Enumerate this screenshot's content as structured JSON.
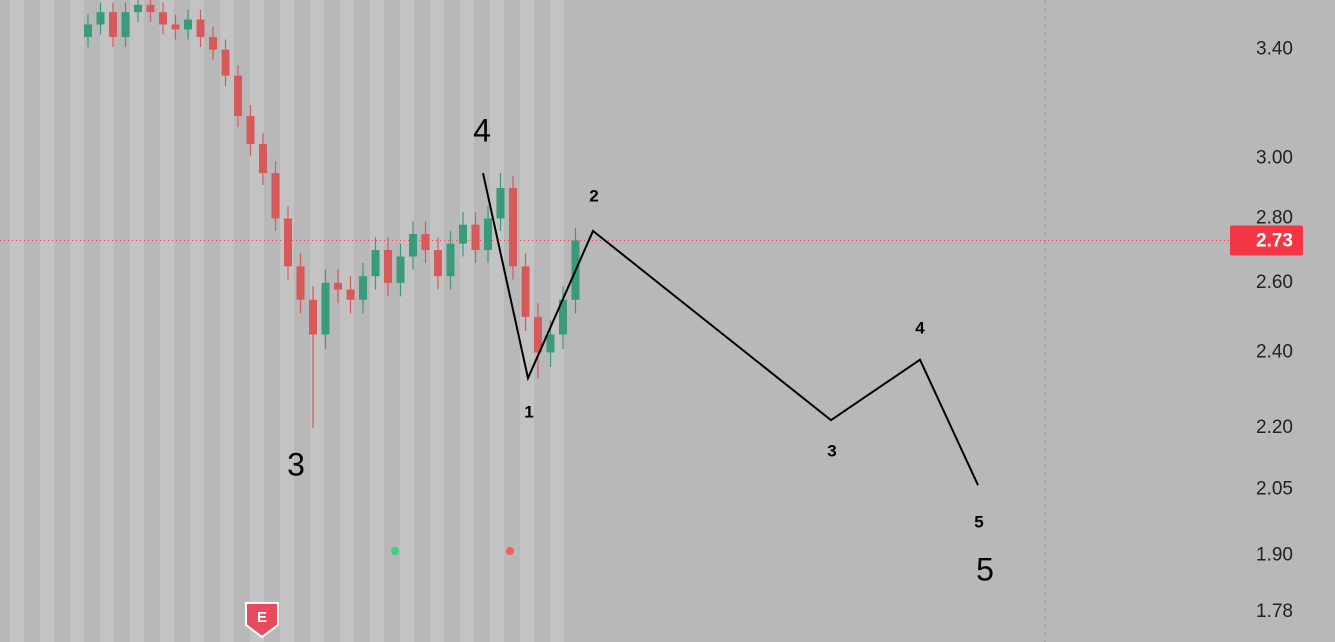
{
  "chart_data": {
    "type": "candlestick",
    "log_scale": true,
    "ylim": [
      1.72,
      3.6
    ],
    "yticks": [
      {
        "value": 3.4,
        "label": "3.40"
      },
      {
        "value": 3.0,
        "label": "3.00"
      },
      {
        "value": 2.8,
        "label": "2.80"
      },
      {
        "value": 2.6,
        "label": "2.60"
      },
      {
        "value": 2.4,
        "label": "2.40"
      },
      {
        "value": 2.2,
        "label": "2.20"
      },
      {
        "value": 2.05,
        "label": "2.05"
      },
      {
        "value": 1.9,
        "label": "1.90"
      },
      {
        "value": 1.78,
        "label": "1.78"
      }
    ],
    "up_color": "#3a9a7c",
    "down_color": "#d8595a",
    "open": [
      3.45,
      3.5,
      3.55,
      3.45,
      3.55,
      3.58,
      3.55,
      3.5,
      3.48,
      3.52,
      3.45,
      3.4,
      3.3,
      3.15,
      3.05,
      2.95,
      2.8,
      2.65,
      2.55,
      2.45,
      2.6,
      2.58,
      2.55,
      2.62,
      2.7,
      2.6,
      2.68,
      2.75,
      2.7,
      2.62,
      2.72,
      2.78,
      2.7,
      2.8,
      2.9,
      2.65,
      2.5,
      2.4,
      2.45,
      2.55
    ],
    "high": [
      3.54,
      3.59,
      3.59,
      3.59,
      3.6,
      3.6,
      3.59,
      3.54,
      3.56,
      3.56,
      3.49,
      3.44,
      3.34,
      3.19,
      3.09,
      2.99,
      2.84,
      2.69,
      2.59,
      2.64,
      2.64,
      2.62,
      2.66,
      2.74,
      2.74,
      2.72,
      2.79,
      2.79,
      2.74,
      2.76,
      2.82,
      2.82,
      2.84,
      2.95,
      2.94,
      2.69,
      2.54,
      2.49,
      2.59,
      2.77
    ],
    "low": [
      3.41,
      3.46,
      3.41,
      3.41,
      3.51,
      3.51,
      3.46,
      3.44,
      3.44,
      3.41,
      3.36,
      3.26,
      3.11,
      3.01,
      2.91,
      2.76,
      2.61,
      2.51,
      2.2,
      2.41,
      2.54,
      2.51,
      2.51,
      2.58,
      2.56,
      2.56,
      2.64,
      2.66,
      2.58,
      2.58,
      2.68,
      2.66,
      2.66,
      2.76,
      2.61,
      2.46,
      2.33,
      2.36,
      2.41,
      2.51
    ],
    "close": [
      3.5,
      3.55,
      3.45,
      3.55,
      3.58,
      3.55,
      3.5,
      3.48,
      3.52,
      3.45,
      3.4,
      3.3,
      3.15,
      3.05,
      2.95,
      2.8,
      2.65,
      2.55,
      2.45,
      2.6,
      2.58,
      2.55,
      2.62,
      2.7,
      2.6,
      2.68,
      2.75,
      2.7,
      2.62,
      2.72,
      2.78,
      2.7,
      2.8,
      2.9,
      2.65,
      2.5,
      2.4,
      2.45,
      2.55,
      2.73
    ],
    "last_price": {
      "value": 2.73,
      "label": "2.73"
    },
    "wave_projection": {
      "color": "#000000",
      "values": [
        2.95,
        2.33,
        2.76,
        2.22,
        2.38,
        2.06
      ]
    },
    "minor_wave_labels": [
      "1",
      "2",
      "3",
      "4",
      "5"
    ],
    "major_wave_labels": [
      "3",
      "4",
      "5"
    ],
    "event_label": "E"
  }
}
